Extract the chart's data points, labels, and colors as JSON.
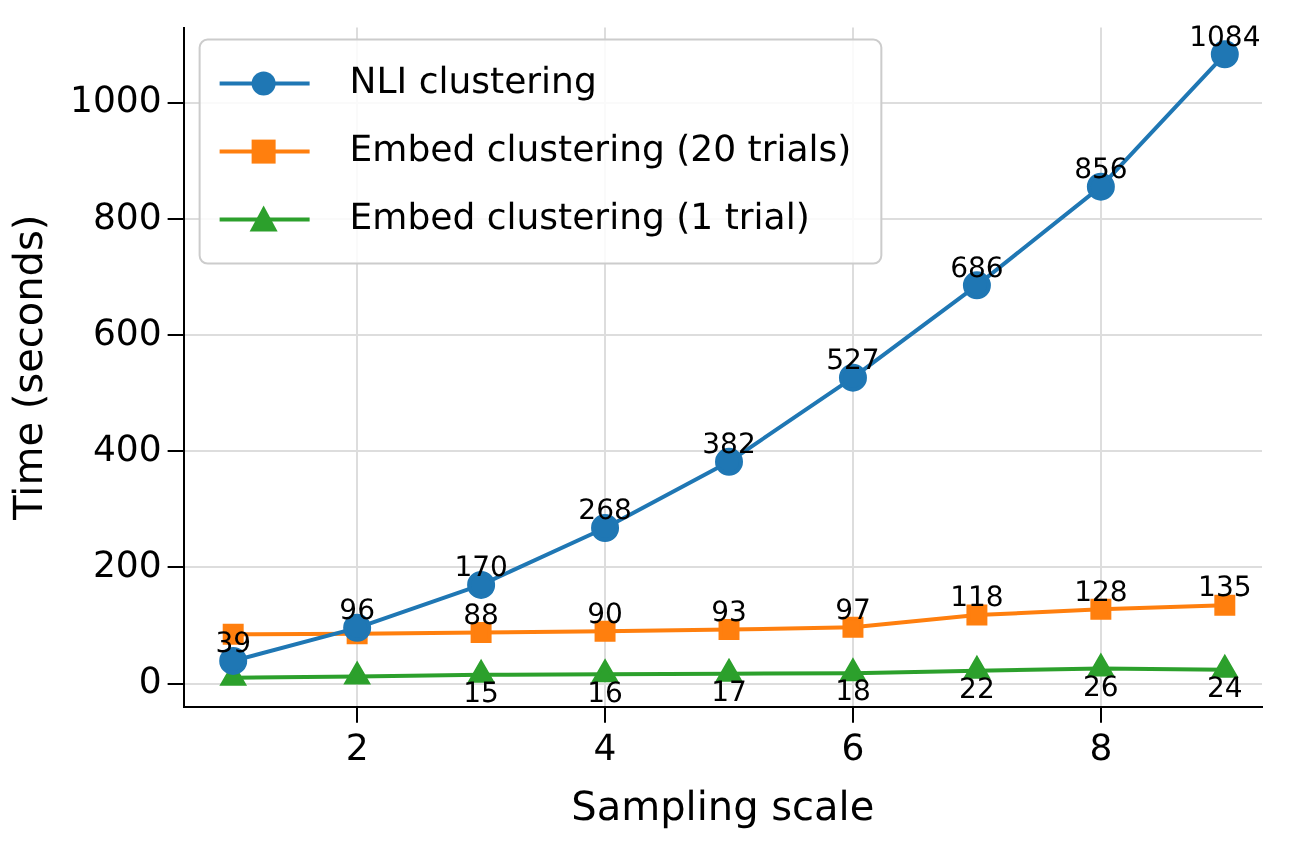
{
  "chart_data": {
    "type": "line",
    "xlabel": "Sampling scale",
    "ylabel": "Time (seconds)",
    "x": [
      1,
      2,
      3,
      4,
      5,
      6,
      7,
      8,
      9
    ],
    "xlim": [
      0.6,
      9.3
    ],
    "xticks": [
      2,
      4,
      6,
      8
    ],
    "ylim": [
      -40,
      1130
    ],
    "yticks": [
      0,
      200,
      400,
      600,
      800,
      1000
    ],
    "grid": true,
    "legend": "top left",
    "line_style": "solid",
    "series": [
      {
        "name": "NLI clustering",
        "color": "#1f77b4",
        "marker": "circle",
        "values": [
          39,
          96,
          170,
          268,
          382,
          527,
          686,
          856,
          1084
        ],
        "value_labels": [
          "39",
          "96",
          "170",
          "268",
          "382",
          "527",
          "686",
          "856",
          "1084"
        ]
      },
      {
        "name": "Embed clustering (20 trials)",
        "color": "#ff7f0e",
        "marker": "square",
        "values": [
          85,
          86,
          88,
          90,
          93,
          97,
          118,
          128,
          135
        ],
        "value_labels": [
          null,
          null,
          "88",
          "90",
          "93",
          "97",
          "118",
          "128",
          "135"
        ]
      },
      {
        "name": "Embed clustering (1 trial)",
        "color": "#2ca02c",
        "marker": "triangle",
        "values": [
          10,
          12,
          15,
          16,
          17,
          18,
          22,
          26,
          24
        ],
        "value_labels": [
          null,
          null,
          "15",
          "16",
          "17",
          "18",
          "22",
          "26",
          "24"
        ]
      }
    ]
  }
}
